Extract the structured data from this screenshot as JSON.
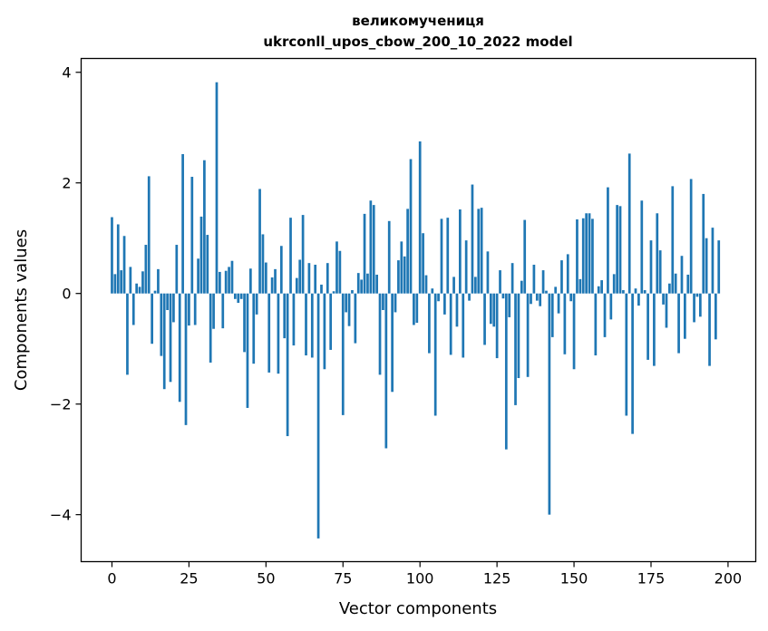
{
  "chart_data": {
    "type": "bar",
    "title": [
      "великомучениця",
      "ukrconll_upos_cbow_200_10_2022 model"
    ],
    "xlabel": "Vector components",
    "ylabel": "Components values",
    "xlim": [
      -10,
      209
    ],
    "ylim": [
      -4.85,
      4.25
    ],
    "xticks": [
      0,
      25,
      50,
      75,
      100,
      125,
      150,
      175,
      200
    ],
    "yticks": [
      -4,
      -2,
      0,
      2,
      4
    ],
    "xtick_labels": [
      "0",
      "25",
      "50",
      "75",
      "100",
      "125",
      "150",
      "175",
      "200"
    ],
    "ytick_labels": [
      "−4",
      "−2",
      "0",
      "2",
      "4"
    ],
    "grid": false,
    "bar_color": "#1f77b4",
    "values": [
      1.38,
      0.35,
      1.25,
      0.42,
      1.04,
      -1.47,
      0.48,
      -0.57,
      0.18,
      0.12,
      0.4,
      0.88,
      2.12,
      -0.91,
      0.05,
      0.44,
      -1.13,
      -1.73,
      -0.3,
      -1.6,
      -0.52,
      0.88,
      -1.96,
      2.52,
      -2.38,
      -0.58,
      2.11,
      -0.57,
      0.63,
      1.39,
      2.41,
      1.06,
      -1.25,
      -0.64,
      3.82,
      0.39,
      -0.63,
      0.41,
      0.48,
      0.59,
      -0.1,
      -0.17,
      -0.1,
      -1.06,
      -2.07,
      0.45,
      -1.27,
      -0.38,
      1.89,
      1.07,
      0.56,
      -1.43,
      0.29,
      0.44,
      -1.45,
      0.86,
      -0.81,
      -2.58,
      1.37,
      -0.94,
      0.28,
      0.61,
      1.42,
      -1.12,
      0.55,
      -1.16,
      0.52,
      -4.43,
      0.16,
      -1.37,
      0.55,
      -1.02,
      0.04,
      0.94,
      0.77,
      -2.2,
      -0.34,
      -0.59,
      0.06,
      -0.9,
      0.37,
      0.25,
      1.44,
      0.36,
      1.68,
      1.6,
      0.34,
      -1.47,
      -0.3,
      -2.8,
      1.31,
      -1.78,
      -0.34,
      0.6,
      0.94,
      0.67,
      1.53,
      2.43,
      -0.57,
      -0.53,
      2.75,
      1.09,
      0.33,
      -1.08,
      0.09,
      -2.21,
      -0.14,
      1.35,
      -0.38,
      1.37,
      -1.11,
      0.3,
      -0.6,
      1.52,
      -1.16,
      0.96,
      -0.13,
      1.97,
      0.3,
      1.53,
      1.55,
      -0.93,
      0.76,
      -0.55,
      -0.6,
      -1.17,
      0.42,
      -0.09,
      -2.82,
      -0.43,
      0.55,
      -2.02,
      -1.53,
      0.23,
      1.33,
      -1.51,
      -0.19,
      0.52,
      -0.13,
      -0.23,
      0.42,
      0.05,
      -4.0,
      -0.79,
      0.12,
      -0.36,
      0.6,
      -1.1,
      0.71,
      -0.14,
      -1.37,
      1.34,
      0.26,
      1.36,
      1.45,
      1.45,
      1.35,
      -1.12,
      0.13,
      0.24,
      -0.79,
      1.92,
      -0.47,
      0.35,
      1.6,
      1.58,
      0.06,
      -2.21,
      2.53,
      -2.54,
      0.09,
      -0.22,
      1.68,
      0.06,
      -1.2,
      0.96,
      -1.31,
      1.45,
      0.78,
      -0.2,
      -0.62,
      0.18,
      1.94,
      0.36,
      -1.08,
      0.68,
      -0.82,
      0.34,
      2.07,
      -0.52,
      -0.06,
      -0.42,
      1.8,
      1.0,
      -1.31,
      1.19,
      -0.83,
      0.96
    ]
  }
}
